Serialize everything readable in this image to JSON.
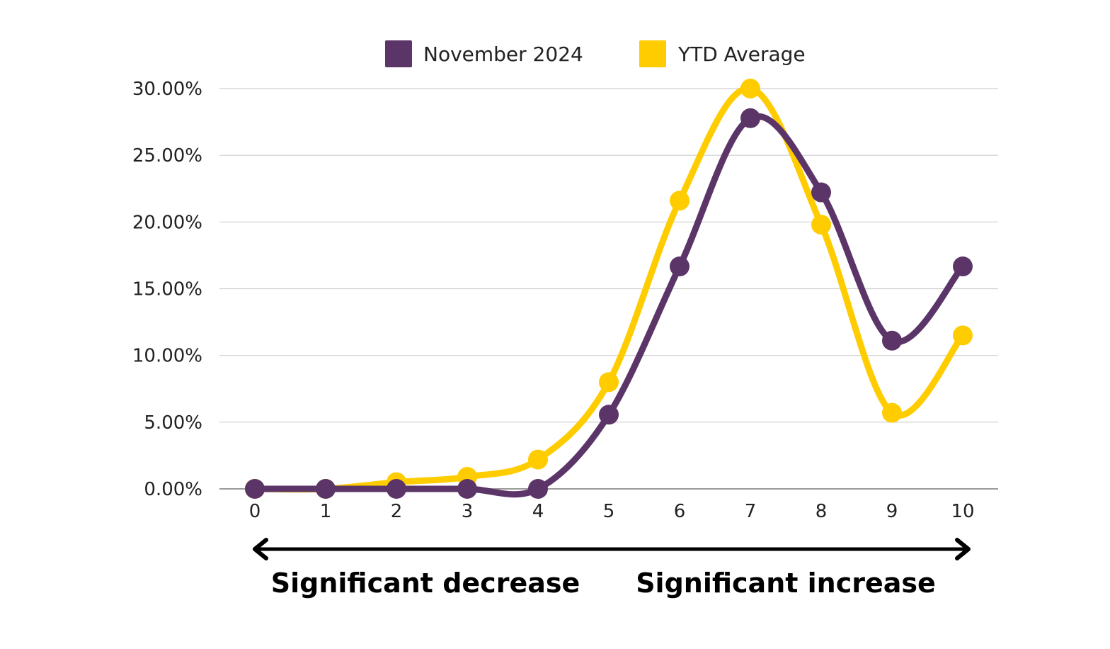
{
  "chart_data": {
    "type": "line",
    "title": "",
    "xlabel": "",
    "ylabel": "",
    "categories": [
      "0",
      "1",
      "2",
      "3",
      "4",
      "5",
      "6",
      "7",
      "8",
      "9",
      "10"
    ],
    "y_ticks": [
      "0.00%",
      "5.00%",
      "10.00%",
      "15.00%",
      "20.00%",
      "25.00%",
      "30.00%"
    ],
    "ylim": [
      0,
      30
    ],
    "grid": true,
    "legend_position": "top",
    "smooth": true,
    "series": [
      {
        "name": "November 2024",
        "color": "#5b3568",
        "values": [
          0.0,
          0.0,
          0.0,
          0.0,
          0.0,
          5.56,
          16.67,
          27.78,
          22.22,
          11.11,
          16.67
        ]
      },
      {
        "name": "YTD Average",
        "color": "#ffcc00",
        "values": [
          0.0,
          0.0,
          0.5,
          0.9,
          2.2,
          8.0,
          21.6,
          30.0,
          19.8,
          5.7,
          11.5
        ]
      }
    ],
    "annotations": {
      "left": "Significant decrease",
      "right": "Significant increase"
    }
  }
}
